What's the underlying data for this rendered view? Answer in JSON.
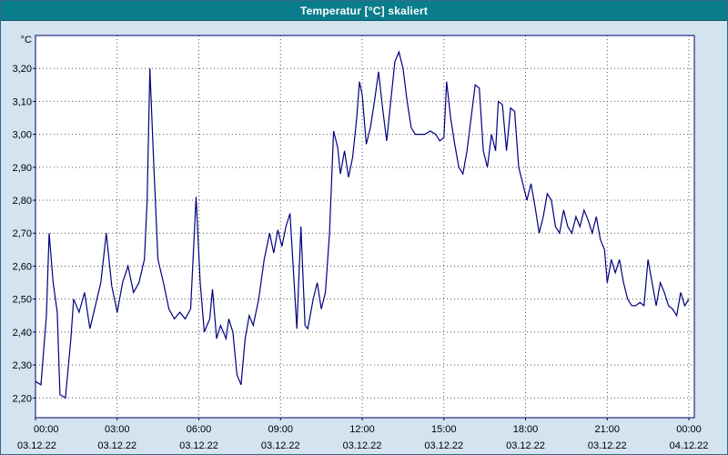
{
  "window": {
    "title": "Temperatur [°C] skaliert"
  },
  "colors": {
    "titlebar_bg": "#0a7d8c",
    "titlebar_text": "#ffffff",
    "window_bg": "#d3e3f0",
    "plot_bg": "#ffffff",
    "plot_border": "#000066",
    "grid": "#555555",
    "line": "#000080",
    "label_text": "#000000"
  },
  "chart_data": {
    "type": "line",
    "title": "Temperatur [°C] skaliert",
    "xlabel": "",
    "ylabel": "°C",
    "y_unit_label": "°C",
    "grid": "dotted",
    "legend_position": "none",
    "xlim": [
      0,
      24.2
    ],
    "ylim": [
      2.14,
      3.3
    ],
    "y_ticks": [
      {
        "value": 2.2,
        "label": "2,20"
      },
      {
        "value": 2.3,
        "label": "2,30"
      },
      {
        "value": 2.4,
        "label": "2,40"
      },
      {
        "value": 2.5,
        "label": "2,50"
      },
      {
        "value": 2.6,
        "label": "2,60"
      },
      {
        "value": 2.7,
        "label": "2,70"
      },
      {
        "value": 2.8,
        "label": "2,80"
      },
      {
        "value": 2.9,
        "label": "2,90"
      },
      {
        "value": 3.0,
        "label": "3,00"
      },
      {
        "value": 3.1,
        "label": "3,10"
      },
      {
        "value": 3.2,
        "label": "3,20"
      }
    ],
    "x_ticks": [
      {
        "hours": 0,
        "time": "00:00",
        "date": "03.12.22"
      },
      {
        "hours": 3,
        "time": "03:00",
        "date": "03.12.22"
      },
      {
        "hours": 6,
        "time": "06:00",
        "date": "03.12.22"
      },
      {
        "hours": 9,
        "time": "09:00",
        "date": "03.12.22"
      },
      {
        "hours": 12,
        "time": "12:00",
        "date": "03.12.22"
      },
      {
        "hours": 15,
        "time": "15:00",
        "date": "03.12.22"
      },
      {
        "hours": 18,
        "time": "18:00",
        "date": "03.12.22"
      },
      {
        "hours": 21,
        "time": "21:00",
        "date": "03.12.22"
      },
      {
        "hours": 24,
        "time": "00:00",
        "date": "04.12.22"
      }
    ],
    "series": [
      {
        "name": "Temperatur",
        "color": "#000080",
        "points": [
          [
            0.0,
            2.25
          ],
          [
            0.2,
            2.24
          ],
          [
            0.4,
            2.45
          ],
          [
            0.5,
            2.7
          ],
          [
            0.65,
            2.55
          ],
          [
            0.8,
            2.46
          ],
          [
            0.9,
            2.21
          ],
          [
            1.1,
            2.2
          ],
          [
            1.3,
            2.38
          ],
          [
            1.4,
            2.5
          ],
          [
            1.6,
            2.46
          ],
          [
            1.8,
            2.52
          ],
          [
            2.0,
            2.41
          ],
          [
            2.2,
            2.48
          ],
          [
            2.4,
            2.55
          ],
          [
            2.6,
            2.7
          ],
          [
            2.8,
            2.54
          ],
          [
            3.0,
            2.46
          ],
          [
            3.2,
            2.55
          ],
          [
            3.4,
            2.6
          ],
          [
            3.6,
            2.52
          ],
          [
            3.8,
            2.55
          ],
          [
            4.0,
            2.62
          ],
          [
            4.1,
            2.8
          ],
          [
            4.2,
            3.2
          ],
          [
            4.35,
            2.9
          ],
          [
            4.5,
            2.62
          ],
          [
            4.7,
            2.55
          ],
          [
            4.9,
            2.47
          ],
          [
            5.1,
            2.44
          ],
          [
            5.3,
            2.46
          ],
          [
            5.5,
            2.44
          ],
          [
            5.7,
            2.47
          ],
          [
            5.9,
            2.81
          ],
          [
            6.05,
            2.55
          ],
          [
            6.2,
            2.4
          ],
          [
            6.4,
            2.44
          ],
          [
            6.5,
            2.53
          ],
          [
            6.65,
            2.38
          ],
          [
            6.8,
            2.42
          ],
          [
            7.0,
            2.38
          ],
          [
            7.1,
            2.44
          ],
          [
            7.25,
            2.4
          ],
          [
            7.4,
            2.27
          ],
          [
            7.55,
            2.24
          ],
          [
            7.7,
            2.38
          ],
          [
            7.85,
            2.45
          ],
          [
            8.0,
            2.42
          ],
          [
            8.2,
            2.5
          ],
          [
            8.4,
            2.62
          ],
          [
            8.6,
            2.7
          ],
          [
            8.75,
            2.64
          ],
          [
            8.9,
            2.71
          ],
          [
            9.05,
            2.66
          ],
          [
            9.2,
            2.72
          ],
          [
            9.35,
            2.76
          ],
          [
            9.5,
            2.55
          ],
          [
            9.6,
            2.41
          ],
          [
            9.75,
            2.72
          ],
          [
            9.9,
            2.42
          ],
          [
            10.0,
            2.41
          ],
          [
            10.2,
            2.5
          ],
          [
            10.35,
            2.55
          ],
          [
            10.5,
            2.47
          ],
          [
            10.65,
            2.52
          ],
          [
            10.8,
            2.7
          ],
          [
            10.95,
            3.01
          ],
          [
            11.1,
            2.96
          ],
          [
            11.2,
            2.88
          ],
          [
            11.35,
            2.95
          ],
          [
            11.5,
            2.87
          ],
          [
            11.65,
            2.93
          ],
          [
            11.8,
            3.05
          ],
          [
            11.9,
            3.16
          ],
          [
            12.0,
            3.12
          ],
          [
            12.15,
            2.97
          ],
          [
            12.3,
            3.02
          ],
          [
            12.45,
            3.1
          ],
          [
            12.6,
            3.19
          ],
          [
            12.75,
            3.08
          ],
          [
            12.9,
            2.98
          ],
          [
            13.05,
            3.1
          ],
          [
            13.2,
            3.22
          ],
          [
            13.35,
            3.25
          ],
          [
            13.5,
            3.2
          ],
          [
            13.65,
            3.1
          ],
          [
            13.8,
            3.02
          ],
          [
            13.95,
            3.0
          ],
          [
            14.1,
            3.0
          ],
          [
            14.3,
            3.0
          ],
          [
            14.5,
            3.01
          ],
          [
            14.7,
            3.0
          ],
          [
            14.85,
            2.98
          ],
          [
            15.0,
            2.99
          ],
          [
            15.1,
            3.16
          ],
          [
            15.25,
            3.05
          ],
          [
            15.4,
            2.97
          ],
          [
            15.55,
            2.9
          ],
          [
            15.7,
            2.88
          ],
          [
            15.85,
            2.95
          ],
          [
            16.0,
            3.05
          ],
          [
            16.15,
            3.15
          ],
          [
            16.3,
            3.14
          ],
          [
            16.45,
            2.95
          ],
          [
            16.6,
            2.9
          ],
          [
            16.75,
            3.0
          ],
          [
            16.9,
            2.95
          ],
          [
            17.0,
            3.1
          ],
          [
            17.15,
            3.09
          ],
          [
            17.3,
            2.95
          ],
          [
            17.45,
            3.08
          ],
          [
            17.6,
            3.07
          ],
          [
            17.75,
            2.9
          ],
          [
            17.9,
            2.85
          ],
          [
            18.05,
            2.8
          ],
          [
            18.2,
            2.85
          ],
          [
            18.35,
            2.78
          ],
          [
            18.5,
            2.7
          ],
          [
            18.65,
            2.75
          ],
          [
            18.8,
            2.82
          ],
          [
            18.95,
            2.8
          ],
          [
            19.1,
            2.72
          ],
          [
            19.25,
            2.7
          ],
          [
            19.4,
            2.77
          ],
          [
            19.55,
            2.72
          ],
          [
            19.7,
            2.7
          ],
          [
            19.85,
            2.75
          ],
          [
            20.0,
            2.72
          ],
          [
            20.15,
            2.77
          ],
          [
            20.3,
            2.74
          ],
          [
            20.45,
            2.7
          ],
          [
            20.6,
            2.75
          ],
          [
            20.75,
            2.68
          ],
          [
            20.9,
            2.65
          ],
          [
            21.0,
            2.55
          ],
          [
            21.15,
            2.62
          ],
          [
            21.3,
            2.58
          ],
          [
            21.45,
            2.62
          ],
          [
            21.6,
            2.55
          ],
          [
            21.75,
            2.5
          ],
          [
            21.9,
            2.48
          ],
          [
            22.05,
            2.48
          ],
          [
            22.2,
            2.49
          ],
          [
            22.35,
            2.48
          ],
          [
            22.5,
            2.62
          ],
          [
            22.65,
            2.55
          ],
          [
            22.8,
            2.48
          ],
          [
            22.95,
            2.55
          ],
          [
            23.1,
            2.52
          ],
          [
            23.25,
            2.48
          ],
          [
            23.4,
            2.47
          ],
          [
            23.55,
            2.45
          ],
          [
            23.7,
            2.52
          ],
          [
            23.85,
            2.48
          ],
          [
            24.0,
            2.5
          ]
        ]
      }
    ]
  }
}
